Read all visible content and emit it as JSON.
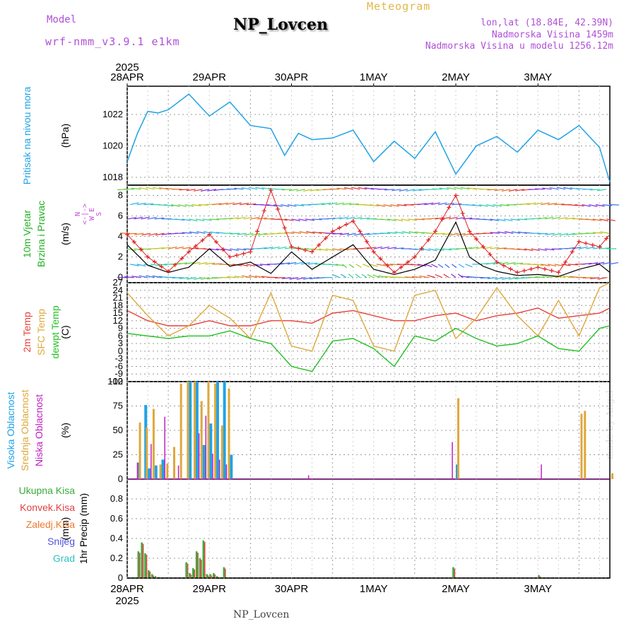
{
  "header": {
    "model_label": "Model",
    "model_version": "wrf-nmm_v3.9.1 e1km",
    "title": "NP_Lovcen",
    "meteogram_label": "Meteogram",
    "lonlat": "lon,lat (18.84E, 42.39N)",
    "altitude": "Nadmorska Visina 1459m",
    "model_altitude": "Nadmorska Visina u modelu 1256.12m"
  },
  "footer": {
    "station": "NP_Lovcen",
    "credit": "made by Angel"
  },
  "colors": {
    "pressure": "#1fa3e6",
    "wind_label": "#22b022",
    "wind_speed": "#000000",
    "wind_gust": "#e02020",
    "temp2m": "#e8403a",
    "sfc_temp": "#dfa83a",
    "dewpt": "#22c022",
    "high_cloud": "#1fa3e6",
    "mid_cloud": "#dfa83a",
    "low_cloud": "#c020c0",
    "precip_total": "#3aaa3a",
    "precip_conv": "#e04040",
    "precip_freezing": "#f07a30",
    "snow": "#5050e0",
    "hail": "#30c0c0",
    "compass": "#c04fd8"
  },
  "time_axis": {
    "year_label": "2025",
    "dates": [
      "28APR",
      "29APR",
      "30APR",
      "1MAY",
      "2MAY",
      "3MAY"
    ],
    "start_hour": 12,
    "hours": 141
  },
  "chart_data": [
    {
      "type": "line",
      "label": "Pritisak na nivou mora",
      "unit_label": "(hPa)",
      "ylim": [
        1017.5,
        1023.8
      ],
      "yticks": [
        1018,
        1020,
        1022
      ],
      "grid": true,
      "series": [
        {
          "name": "Pritisak na nivou mora",
          "x_hours": [
            0,
            3,
            6,
            9,
            12,
            18,
            24,
            30,
            36,
            42,
            46,
            50,
            54,
            60,
            66,
            72,
            78,
            84,
            90,
            96,
            102,
            108,
            114,
            120,
            126,
            132,
            138,
            141
          ],
          "values": [
            1019.0,
            1020.8,
            1022.2,
            1022.1,
            1022.3,
            1023.3,
            1021.9,
            1022.8,
            1021.3,
            1021.1,
            1019.4,
            1020.8,
            1020.4,
            1020.5,
            1021.0,
            1019.0,
            1020.3,
            1019.2,
            1020.9,
            1018.2,
            1020.0,
            1020.6,
            1019.6,
            1021.0,
            1020.4,
            1021.3,
            1019.9,
            1017.7
          ]
        }
      ]
    },
    {
      "type": "line",
      "label": "10m Vjetar Brzina i Pravac",
      "unit_label": "(m/s)",
      "compass_label": "N\n<-|->\nW  E\nS",
      "ylim": [
        -0.5,
        9.0
      ],
      "yticks": [
        0,
        2,
        4,
        6,
        8
      ],
      "grid": true,
      "series": [
        {
          "name": "Brzina",
          "x_hours": [
            0,
            6,
            12,
            18,
            24,
            30,
            36,
            42,
            48,
            54,
            60,
            66,
            72,
            78,
            84,
            90,
            96,
            100,
            104,
            108,
            114,
            120,
            126,
            132,
            138,
            141
          ],
          "values": [
            3.2,
            1.2,
            0.5,
            1.0,
            2.8,
            1.1,
            1.5,
            0.4,
            2.5,
            0.8,
            2.0,
            3.2,
            0.8,
            0.3,
            0.8,
            1.7,
            5.4,
            2.0,
            1.1,
            0.6,
            0.2,
            0.3,
            0.1,
            0.8,
            1.3,
            0.5
          ]
        },
        {
          "name": "Udari",
          "x_hours": [
            0,
            6,
            12,
            18,
            24,
            30,
            36,
            42,
            48,
            54,
            60,
            66,
            72,
            78,
            84,
            90,
            96,
            100,
            104,
            108,
            114,
            120,
            126,
            132,
            138,
            141
          ],
          "values": [
            4.2,
            2.0,
            0.6,
            2.5,
            4.2,
            2.0,
            2.5,
            8.5,
            3.0,
            2.5,
            4.5,
            5.5,
            2.5,
            0.5,
            2.0,
            4.5,
            8.0,
            4.5,
            3.0,
            1.5,
            0.5,
            1.0,
            0.5,
            3.5,
            3.0,
            4.2
          ]
        }
      ]
    },
    {
      "type": "line",
      "label": "Temperatura",
      "unit_label": "(C)",
      "ylim": [
        -12,
        27
      ],
      "yticks": [
        -12,
        -9,
        -6,
        -3,
        0,
        3,
        6,
        9,
        12,
        15,
        18,
        21,
        24,
        27
      ],
      "grid": true,
      "series": [
        {
          "name": "2m Temp",
          "x_hours": [
            0,
            6,
            12,
            18,
            24,
            30,
            36,
            42,
            48,
            54,
            60,
            66,
            72,
            78,
            84,
            90,
            96,
            102,
            108,
            114,
            120,
            126,
            132,
            138,
            141
          ],
          "values": [
            16,
            12,
            10,
            10,
            12,
            10,
            10,
            12,
            12,
            11,
            15,
            16,
            14,
            12,
            12,
            14,
            15,
            12,
            14,
            15,
            17,
            13,
            14,
            15,
            17
          ]
        },
        {
          "name": "SFC Temp",
          "x_hours": [
            0,
            6,
            12,
            18,
            24,
            30,
            36,
            42,
            48,
            54,
            60,
            66,
            72,
            78,
            84,
            90,
            96,
            102,
            108,
            114,
            120,
            126,
            132,
            138,
            141
          ],
          "values": [
            23,
            14,
            6,
            10,
            18,
            13,
            5,
            23,
            2,
            0,
            22,
            20,
            2,
            0,
            22,
            24,
            5,
            13,
            25,
            14,
            6,
            20,
            6,
            25,
            27
          ]
        },
        {
          "name": "dewpt Temp",
          "x_hours": [
            0,
            6,
            12,
            18,
            24,
            30,
            36,
            42,
            48,
            54,
            60,
            66,
            72,
            78,
            84,
            90,
            96,
            102,
            108,
            114,
            120,
            126,
            132,
            138,
            141
          ],
          "values": [
            7,
            6,
            5,
            6,
            6,
            8,
            5,
            3,
            -6,
            -8,
            4,
            5,
            1,
            -6,
            6,
            4,
            9,
            5,
            2,
            3,
            6,
            1,
            0,
            9,
            10
          ]
        }
      ]
    },
    {
      "type": "bar",
      "label": "Oblacnost",
      "unit_label": "(%)",
      "ylim": [
        0,
        100
      ],
      "yticks": [
        0,
        25,
        50,
        75,
        100
      ],
      "grid": true,
      "series": [
        {
          "name": "Visoka Oblacnost",
          "x_hours": [
            3,
            5,
            6,
            8,
            10,
            18,
            20,
            22,
            24,
            26,
            28,
            30,
            96
          ],
          "values": [
            17,
            76,
            11,
            14,
            20,
            100,
            100,
            35,
            57,
            100,
            100,
            25,
            15
          ]
        },
        {
          "name": "Srednja Oblacnost",
          "x_hours": [
            3,
            5,
            7,
            9,
            11,
            13,
            15,
            17,
            19,
            21,
            23,
            25,
            27,
            29,
            96,
            132,
            133,
            141
          ],
          "values": [
            58,
            53,
            72,
            15,
            16,
            33,
            98,
            100,
            100,
            80,
            100,
            98,
            55,
            93,
            83,
            67,
            70,
            6
          ]
        },
        {
          "name": "Niska Oblacnost",
          "x_hours": [
            2,
            6,
            10,
            14,
            20,
            22,
            24,
            26,
            28,
            52,
            94,
            120
          ],
          "values": [
            17,
            36,
            64,
            14,
            47,
            65,
            26,
            20,
            15,
            4,
            38,
            15
          ]
        }
      ]
    },
    {
      "type": "bar",
      "label": "1hr Precip",
      "unit_label": "(mm)",
      "ylim": [
        0,
        1.0
      ],
      "yticks": [
        0,
        0.2,
        0.4,
        0.6,
        0.8
      ],
      "grid": true,
      "series": [
        {
          "name": "Ukupna Kisa",
          "x_hours": [
            3,
            4,
            5,
            6,
            7,
            8,
            9,
            17,
            18,
            19,
            20,
            21,
            22,
            23,
            24,
            25,
            26,
            28,
            95,
            120
          ],
          "values": [
            0.27,
            0.36,
            0.25,
            0.08,
            0.04,
            0.02,
            0.01,
            0.16,
            0.05,
            0.1,
            0.27,
            0.2,
            0.38,
            0.04,
            0.04,
            0.05,
            0.02,
            0.11,
            0.11,
            0.03
          ]
        }
      ]
    }
  ],
  "panel_labels": {
    "pressure": [
      "Pritisak na nivou mora"
    ],
    "wind": [
      "10m Vjetar",
      "Brzina i Pravac"
    ],
    "temp": [
      {
        "text": "2m Temp",
        "color_key": "temp2m"
      },
      {
        "text": "SFC Temp",
        "color_key": "sfc_temp"
      },
      {
        "text": "dewpt Temp",
        "color_key": "dewpt"
      }
    ],
    "cloud": [
      {
        "text": "Visoka Oblacnost",
        "color_key": "high_cloud"
      },
      {
        "text": "Srednja Oblacnost",
        "color_key": "mid_cloud"
      },
      {
        "text": "Niska Oblacnost",
        "color_key": "low_cloud"
      }
    ],
    "precip": [
      {
        "text": "Ukupna Kisa",
        "color_key": "precip_total"
      },
      {
        "text": "Konvek.Kisa",
        "color_key": "precip_conv"
      },
      {
        "text": "Zaledj.Kisa",
        "color_key": "precip_freezing"
      },
      {
        "text": "Snijeg",
        "color_key": "snow"
      },
      {
        "text": "Grad",
        "color_key": "hail"
      }
    ]
  }
}
